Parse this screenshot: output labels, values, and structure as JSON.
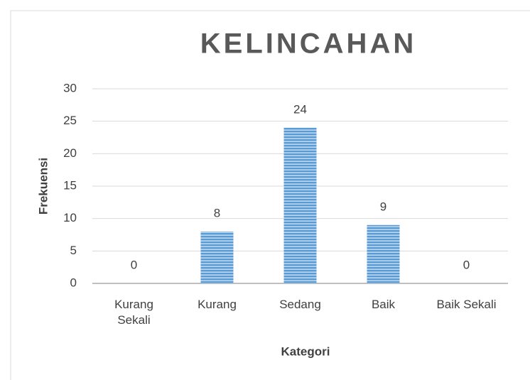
{
  "chart_data": {
    "type": "bar",
    "title": "KELINCAHAN",
    "categories": [
      "Kurang Sekali",
      "Kurang",
      "Sedang",
      "Baik",
      "Baik Sekali"
    ],
    "values": [
      0,
      8,
      24,
      9,
      0
    ],
    "color": "#5b9bd5",
    "xlabel": "Kategori",
    "ylabel": "Frekuensi",
    "ylim": [
      0,
      30
    ],
    "yticks": [
      0,
      5,
      10,
      15,
      20,
      25,
      30
    ],
    "grid": true
  }
}
